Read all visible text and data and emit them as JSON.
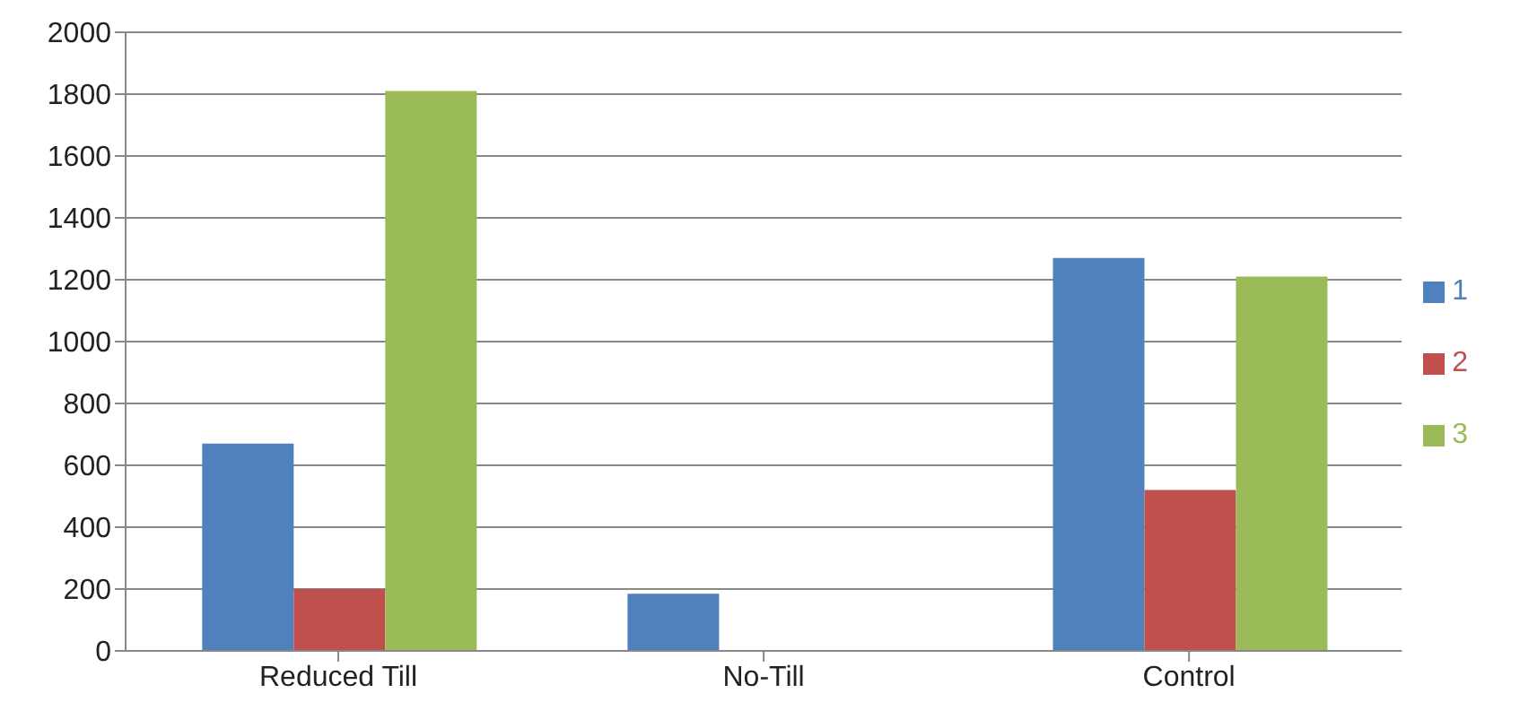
{
  "chart_data": {
    "type": "bar",
    "categories": [
      "Reduced Till",
      "No-Till",
      "Control"
    ],
    "series": [
      {
        "name": "1",
        "color": "#4f81bd",
        "values": [
          670,
          185,
          1270
        ]
      },
      {
        "name": "2",
        "color": "#c0504d",
        "values": [
          200,
          0,
          520
        ]
      },
      {
        "name": "3",
        "color": "#9bbb59",
        "values": [
          1810,
          0,
          1210
        ]
      }
    ],
    "ylim": [
      0,
      2000
    ],
    "yticks": [
      0,
      200,
      400,
      600,
      800,
      1000,
      1200,
      1400,
      1600,
      1800,
      2000
    ],
    "grid": "y",
    "legend": "right"
  }
}
